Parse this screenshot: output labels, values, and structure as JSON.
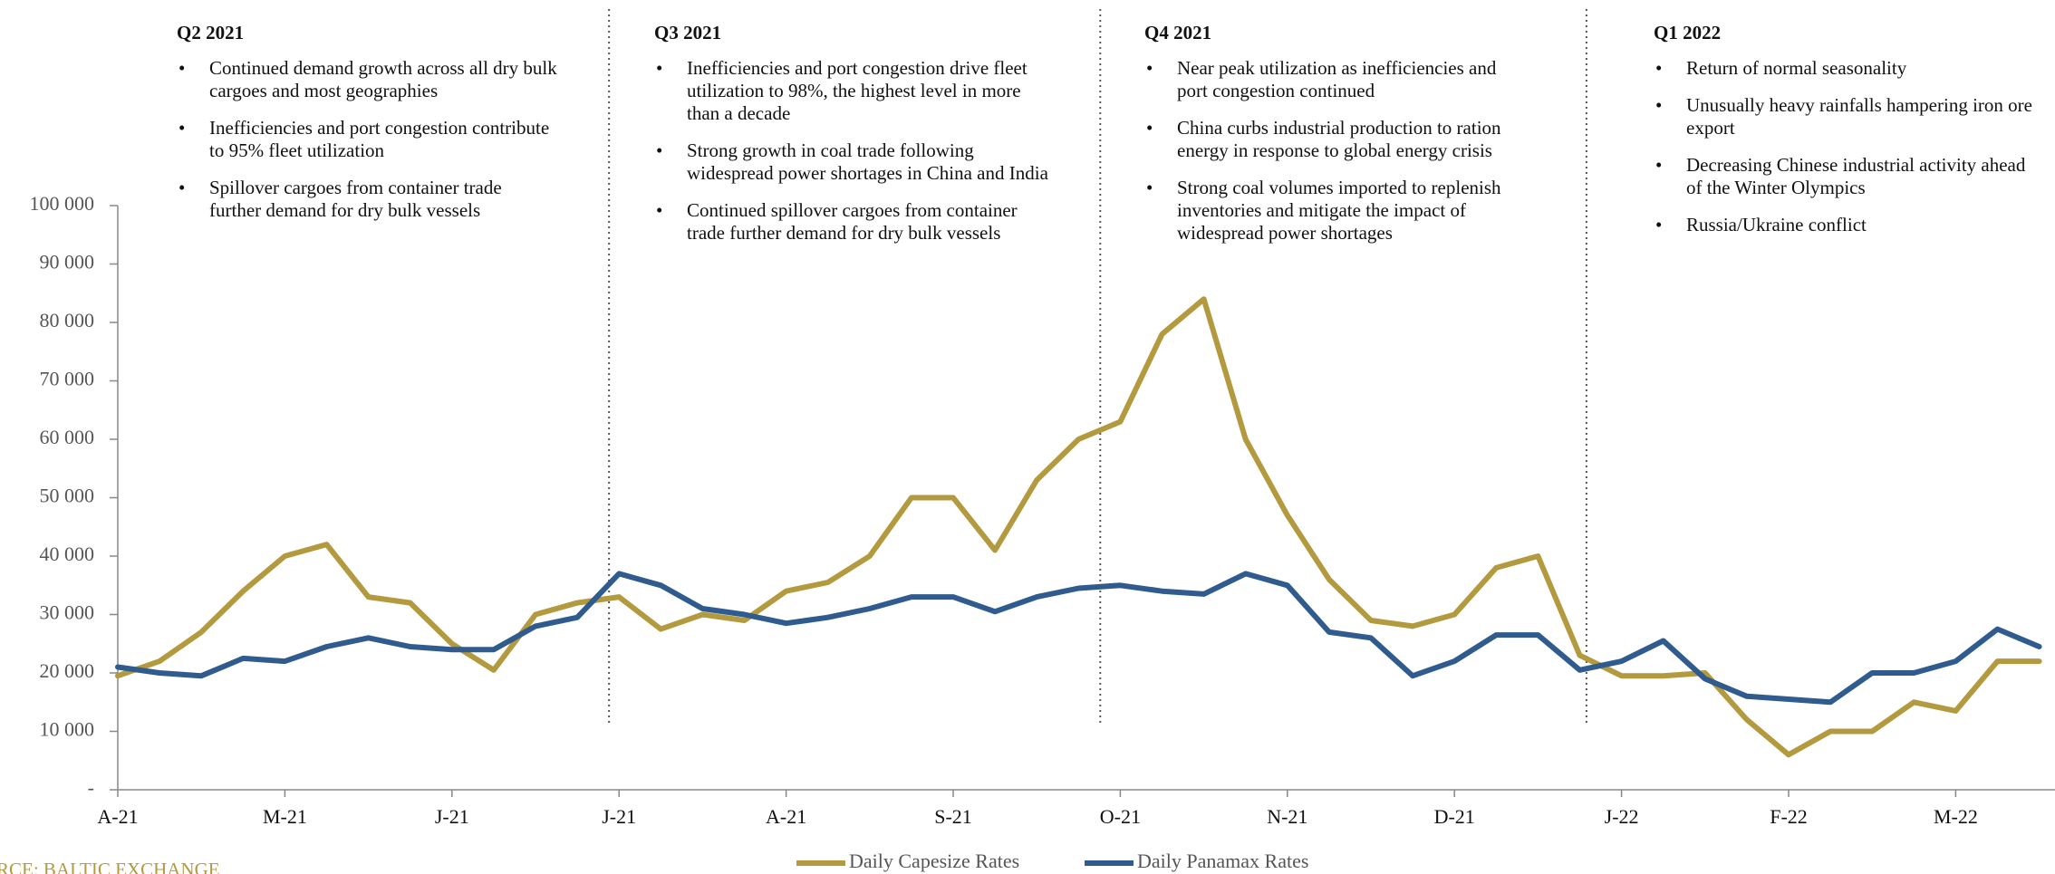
{
  "annotations": [
    {
      "title": "Q2 2021",
      "bullets": [
        "Continued demand growth across all dry bulk cargoes and most geographies",
        "Inefficiencies and port congestion contribute to 95% fleet utilization",
        "Spillover cargoes from container trade further demand for dry bulk vessels"
      ]
    },
    {
      "title": "Q3 2021",
      "bullets": [
        "Inefficiencies and port congestion drive fleet utilization to 98%, the highest level in more than a decade",
        "Strong growth in coal trade following widespread power shortages in China and India",
        "Continued spillover cargoes from container trade further demand for dry bulk vessels"
      ]
    },
    {
      "title": "Q4 2021",
      "bullets": [
        "Near peak utilization as inefficiencies and port congestion continued",
        "China curbs industrial production to ration energy in response to global energy crisis",
        "Strong coal volumes imported to replenish inventories and mitigate the impact of widespread power shortages"
      ]
    },
    {
      "title": "Q1 2022",
      "bullets": [
        "Return of normal seasonality",
        "Unusually heavy rainfalls hampering iron ore export",
        "Decreasing Chinese industrial activity ahead of the Winter Olympics",
        "Russia/Ukraine conflict"
      ]
    }
  ],
  "source": "SOURCE: BALTIC EXCHANGE",
  "chart_data": {
    "type": "line",
    "x": [
      0,
      0.25,
      0.5,
      0.75,
      1,
      1.25,
      1.5,
      1.75,
      2,
      2.25,
      2.5,
      2.75,
      3,
      3.25,
      3.5,
      3.75,
      4,
      4.25,
      4.5,
      4.75,
      5,
      5.25,
      5.5,
      5.75,
      6,
      6.25,
      6.5,
      6.75,
      7,
      7.25,
      7.5,
      7.75,
      8,
      8.25,
      8.5,
      8.75,
      9,
      9.25,
      9.5,
      9.75,
      10,
      10.25,
      10.5,
      10.75,
      11,
      11.25,
      11.5
    ],
    "series": [
      {
        "name": "Daily Capesize Rates",
        "color": "#b39a3f",
        "values": [
          19500,
          22000,
          27000,
          34000,
          40000,
          42000,
          33000,
          32000,
          25000,
          20500,
          30000,
          32000,
          33000,
          27500,
          30000,
          29000,
          34000,
          35500,
          40000,
          50000,
          50000,
          41000,
          53000,
          60000,
          63000,
          78000,
          84000,
          60000,
          47000,
          36000,
          29000,
          28000,
          30000,
          38000,
          40000,
          23000,
          19500,
          19500,
          20000,
          12000,
          6000,
          10000,
          10000,
          15000,
          13500,
          22000,
          22000
        ]
      },
      {
        "name": "Daily Panamax Rates",
        "color": "#2f5b8e",
        "values": [
          21000,
          20000,
          19500,
          22500,
          22000,
          24500,
          26000,
          24500,
          24000,
          24000,
          28000,
          29500,
          37000,
          35000,
          31000,
          30000,
          28500,
          29500,
          31000,
          33000,
          33000,
          30500,
          33000,
          34500,
          35000,
          34000,
          33500,
          37000,
          35000,
          27000,
          26000,
          19500,
          22000,
          26500,
          26500,
          20500,
          22000,
          25500,
          19000,
          16000,
          15500,
          15000,
          20000,
          20000,
          22000,
          27500,
          24500
        ]
      }
    ],
    "quarter_lines": [
      2.94,
      5.88,
      8.79
    ],
    "xlim": [
      0,
      11.6
    ],
    "xticks": [
      {
        "value": 0,
        "label": "A-21"
      },
      {
        "value": 1,
        "label": "M-21"
      },
      {
        "value": 2,
        "label": "J-21"
      },
      {
        "value": 3,
        "label": "J-21"
      },
      {
        "value": 4,
        "label": "A-21"
      },
      {
        "value": 5,
        "label": "S-21"
      },
      {
        "value": 6,
        "label": "O-21"
      },
      {
        "value": 7,
        "label": "N-21"
      },
      {
        "value": 8,
        "label": "D-21"
      },
      {
        "value": 9,
        "label": "J-22"
      },
      {
        "value": 10,
        "label": "F-22"
      },
      {
        "value": 11,
        "label": "M-22"
      }
    ],
    "ylim": [
      0,
      100000
    ],
    "yticks": [
      {
        "value": 0,
        "label": "-"
      },
      {
        "value": 10000,
        "label": "10 000"
      },
      {
        "value": 20000,
        "label": "20 000"
      },
      {
        "value": 30000,
        "label": "30 000"
      },
      {
        "value": 40000,
        "label": "40 000"
      },
      {
        "value": 50000,
        "label": "50 000"
      },
      {
        "value": 60000,
        "label": "60 000"
      },
      {
        "value": 70000,
        "label": "70 000"
      },
      {
        "value": 80000,
        "label": "80 000"
      },
      {
        "value": 90000,
        "label": "90 000"
      },
      {
        "value": 100000,
        "label": "100 000"
      }
    ],
    "legend": "bottom"
  }
}
